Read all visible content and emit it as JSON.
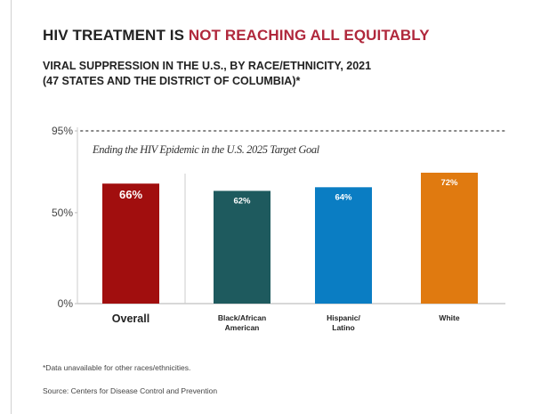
{
  "title": {
    "part1": "HIV TREATMENT IS ",
    "part2": "NOT REACHING ALL EQUITABLY",
    "highlight_color": "#b0283c"
  },
  "subtitle": {
    "line1": "VIRAL SUPPRESSION IN THE U.S., BY RACE/ETHNICITY, 2021",
    "line2": "(47 STATES AND THE DISTRICT OF COLUMBIA)*"
  },
  "chart_data": {
    "type": "bar",
    "categories": [
      "Overall",
      "Black/African American",
      "Hispanic/ Latino",
      "White"
    ],
    "category_lines": [
      [
        "Overall"
      ],
      [
        "Black/African",
        "American"
      ],
      [
        "Hispanic/",
        "Latino"
      ],
      [
        "White"
      ]
    ],
    "values": [
      66,
      62,
      64,
      72
    ],
    "data_labels": [
      "66%",
      "62%",
      "64%",
      "72%"
    ],
    "colors": [
      "#a10e0e",
      "#1e5a5e",
      "#0a7dc3",
      "#e07a10"
    ],
    "y_ticks": [
      0,
      50,
      95
    ],
    "y_tick_labels": [
      "0%",
      "50%",
      "95%"
    ],
    "ylim": [
      0,
      95
    ],
    "reference_line": {
      "value": 95,
      "label": "Ending the HIV Epidemic in the U.S. 2025 Target Goal",
      "style": "dotted"
    },
    "grid": false
  },
  "footnote": "*Data unavailable for other races/ethnicities.",
  "source": "Source: Centers for Disease Control and Prevention"
}
